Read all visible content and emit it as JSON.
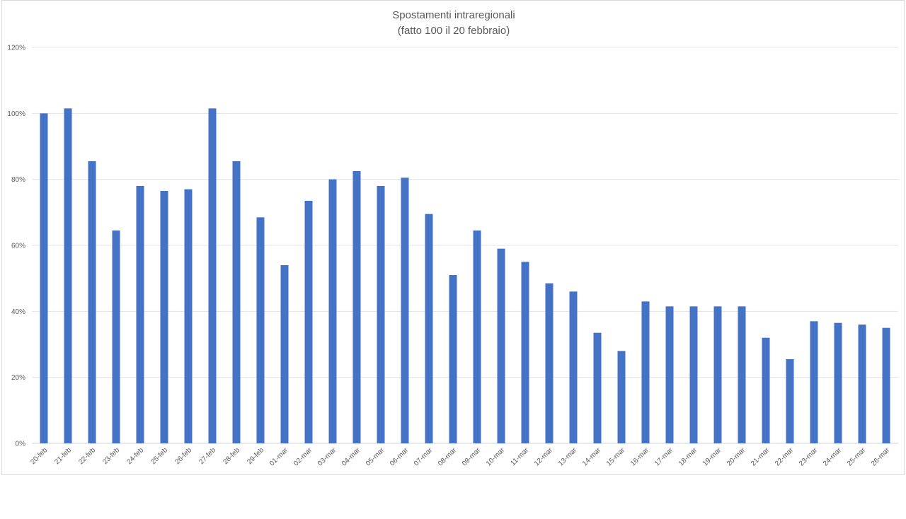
{
  "chart_data": {
    "type": "bar",
    "title": "Spostamenti intraregionali",
    "subtitle": "(fatto 100 il 20 febbraio)",
    "xlabel": "",
    "ylabel": "",
    "ylim": [
      0,
      120
    ],
    "y_ticks": [
      0,
      20,
      40,
      60,
      80,
      100,
      120
    ],
    "y_tick_labels": [
      "0%",
      "20%",
      "40%",
      "60%",
      "80%",
      "100%",
      "120%"
    ],
    "grid": true,
    "legend": "none",
    "bar_color": "#4472C4",
    "categories": [
      "20-feb",
      "21-feb",
      "22-feb",
      "23-feb",
      "24-feb",
      "25-feb",
      "26-feb",
      "27-feb",
      "28-feb",
      "29-feb",
      "01-mar",
      "02-mar",
      "03-mar",
      "04-mar",
      "05-mar",
      "06-mar",
      "07-mar",
      "08-mar",
      "09-mar",
      "10-mar",
      "11-mar",
      "12-mar",
      "13-mar",
      "14-mar",
      "15-mar",
      "16-mar",
      "17-mar",
      "18-mar",
      "19-mar",
      "20-mar",
      "21-mar",
      "22-mar",
      "23-mar",
      "24-mar",
      "25-mar",
      "26-mar"
    ],
    "values": [
      100,
      101.5,
      85.5,
      64.5,
      78,
      76.5,
      77,
      101.5,
      85.5,
      68.5,
      54,
      73.5,
      80,
      82.5,
      78,
      80.5,
      69.5,
      51,
      64.5,
      59,
      55,
      48.5,
      46,
      33.5,
      28,
      43,
      41.5,
      41.5,
      41.5,
      41.5,
      32,
      25.5,
      37,
      36.5,
      36,
      35
    ]
  }
}
